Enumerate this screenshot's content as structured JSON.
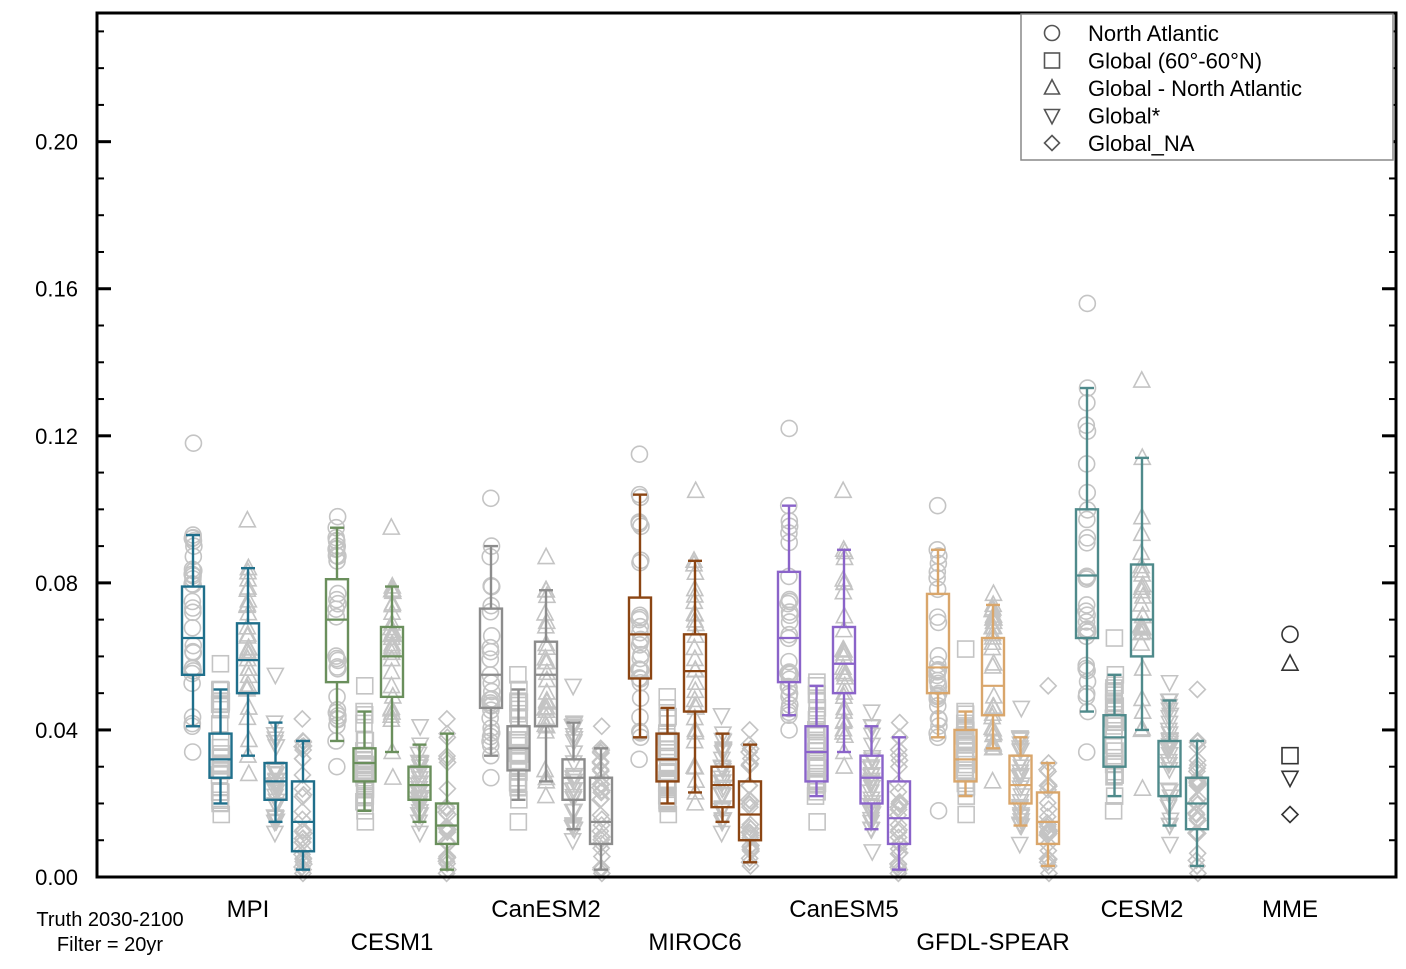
{
  "chart_data": {
    "type": "box",
    "title": "",
    "xlabel": "",
    "ylabel": "",
    "ylim": [
      0,
      0.235
    ],
    "yticks": [
      "0.00",
      "0.04",
      "0.08",
      "0.12",
      "0.16",
      "0.20"
    ],
    "legend": {
      "placement": "top-right",
      "entries": [
        {
          "marker": "circle",
          "label": "North Atlantic"
        },
        {
          "marker": "square",
          "label": "Global (60°-60°N)"
        },
        {
          "marker": "triangle-up",
          "label": "Global - North Atlantic"
        },
        {
          "marker": "triangle-down",
          "label": "Global*"
        },
        {
          "marker": "diamond",
          "label": "Global_NA"
        }
      ]
    },
    "annotation": {
      "line1": "Truth 2030-2100",
      "line2": "Filter = 20yr"
    },
    "models": [
      {
        "name": "MPI",
        "color": "#1f6f8b",
        "label_row": 1,
        "boxes": [
          {
            "metric": "North Atlantic",
            "q1": 0.055,
            "median": 0.065,
            "q3": 0.079,
            "whislo": 0.041,
            "whishi": 0.093,
            "fmin": 0.034,
            "fmax": 0.118
          },
          {
            "metric": "Global (60°-60°N)",
            "q1": 0.027,
            "median": 0.032,
            "q3": 0.039,
            "whislo": 0.02,
            "whishi": 0.051,
            "fmin": 0.017,
            "fmax": 0.058
          },
          {
            "metric": "Global - North Atlantic",
            "q1": 0.05,
            "median": 0.059,
            "q3": 0.069,
            "whislo": 0.033,
            "whishi": 0.084,
            "fmin": 0.028,
            "fmax": 0.097
          },
          {
            "metric": "Global*",
            "q1": 0.021,
            "median": 0.026,
            "q3": 0.031,
            "whislo": 0.015,
            "whishi": 0.042,
            "fmin": 0.012,
            "fmax": 0.055
          },
          {
            "metric": "Global_NA",
            "q1": 0.007,
            "median": 0.015,
            "q3": 0.026,
            "whislo": 0.002,
            "whishi": 0.037,
            "fmin": 0.001,
            "fmax": 0.043
          }
        ]
      },
      {
        "name": "CESM1",
        "color": "#6a8f5c",
        "label_row": 2,
        "boxes": [
          {
            "metric": "North Atlantic",
            "q1": 0.053,
            "median": 0.07,
            "q3": 0.081,
            "whislo": 0.037,
            "whishi": 0.095,
            "fmin": 0.03,
            "fmax": 0.098
          },
          {
            "metric": "Global (60°-60°N)",
            "q1": 0.026,
            "median": 0.031,
            "q3": 0.035,
            "whislo": 0.018,
            "whishi": 0.045,
            "fmin": 0.015,
            "fmax": 0.052
          },
          {
            "metric": "Global - North Atlantic",
            "q1": 0.049,
            "median": 0.06,
            "q3": 0.068,
            "whislo": 0.034,
            "whishi": 0.079,
            "fmin": 0.027,
            "fmax": 0.095
          },
          {
            "metric": "Global*",
            "q1": 0.021,
            "median": 0.025,
            "q3": 0.03,
            "whislo": 0.015,
            "whishi": 0.036,
            "fmin": 0.012,
            "fmax": 0.041
          },
          {
            "metric": "Global_NA",
            "q1": 0.009,
            "median": 0.014,
            "q3": 0.02,
            "whislo": 0.002,
            "whishi": 0.039,
            "fmin": 0.001,
            "fmax": 0.043
          }
        ]
      },
      {
        "name": "CanESM2",
        "color": "#8c8c8c",
        "label_row": 1,
        "boxes": [
          {
            "metric": "North Atlantic",
            "q1": 0.046,
            "median": 0.055,
            "q3": 0.073,
            "whislo": 0.033,
            "whishi": 0.09,
            "fmin": 0.027,
            "fmax": 0.103
          },
          {
            "metric": "Global (60°-60°N)",
            "q1": 0.029,
            "median": 0.035,
            "q3": 0.041,
            "whislo": 0.021,
            "whishi": 0.051,
            "fmin": 0.015,
            "fmax": 0.055
          },
          {
            "metric": "Global - North Atlantic",
            "q1": 0.041,
            "median": 0.055,
            "q3": 0.064,
            "whislo": 0.026,
            "whishi": 0.078,
            "fmin": 0.022,
            "fmax": 0.087
          },
          {
            "metric": "Global*",
            "q1": 0.021,
            "median": 0.027,
            "q3": 0.032,
            "whislo": 0.013,
            "whishi": 0.042,
            "fmin": 0.01,
            "fmax": 0.052
          },
          {
            "metric": "Global_NA",
            "q1": 0.009,
            "median": 0.015,
            "q3": 0.027,
            "whislo": 0.002,
            "whishi": 0.035,
            "fmin": 0.001,
            "fmax": 0.041
          }
        ]
      },
      {
        "name": "MIROC6",
        "color": "#8b4513",
        "label_row": 2,
        "boxes": [
          {
            "metric": "North Atlantic",
            "q1": 0.054,
            "median": 0.066,
            "q3": 0.076,
            "whislo": 0.038,
            "whishi": 0.104,
            "fmin": 0.032,
            "fmax": 0.115
          },
          {
            "metric": "Global (60°-60°N)",
            "q1": 0.026,
            "median": 0.032,
            "q3": 0.039,
            "whislo": 0.02,
            "whishi": 0.046,
            "fmin": 0.017,
            "fmax": 0.049
          },
          {
            "metric": "Global - North Atlantic",
            "q1": 0.045,
            "median": 0.056,
            "q3": 0.066,
            "whislo": 0.023,
            "whishi": 0.086,
            "fmin": 0.02,
            "fmax": 0.105
          },
          {
            "metric": "Global*",
            "q1": 0.019,
            "median": 0.025,
            "q3": 0.03,
            "whislo": 0.015,
            "whishi": 0.039,
            "fmin": 0.012,
            "fmax": 0.044
          },
          {
            "metric": "Global_NA",
            "q1": 0.01,
            "median": 0.017,
            "q3": 0.026,
            "whislo": 0.004,
            "whishi": 0.036,
            "fmin": 0.003,
            "fmax": 0.04
          }
        ]
      },
      {
        "name": "CanESM5",
        "color": "#8a63c9",
        "label_row": 1,
        "boxes": [
          {
            "metric": "North Atlantic",
            "q1": 0.053,
            "median": 0.065,
            "q3": 0.083,
            "whislo": 0.044,
            "whishi": 0.101,
            "fmin": 0.04,
            "fmax": 0.122
          },
          {
            "metric": "Global (60°-60°N)",
            "q1": 0.026,
            "median": 0.034,
            "q3": 0.041,
            "whislo": 0.022,
            "whishi": 0.052,
            "fmin": 0.015,
            "fmax": 0.053
          },
          {
            "metric": "Global - North Atlantic",
            "q1": 0.05,
            "median": 0.058,
            "q3": 0.068,
            "whislo": 0.034,
            "whishi": 0.089,
            "fmin": 0.03,
            "fmax": 0.105
          },
          {
            "metric": "Global*",
            "q1": 0.02,
            "median": 0.027,
            "q3": 0.033,
            "whislo": 0.013,
            "whishi": 0.041,
            "fmin": 0.007,
            "fmax": 0.045
          },
          {
            "metric": "Global_NA",
            "q1": 0.009,
            "median": 0.016,
            "q3": 0.026,
            "whislo": 0.002,
            "whishi": 0.038,
            "fmin": 0.001,
            "fmax": 0.042
          }
        ]
      },
      {
        "name": "GFDL-SPEAR",
        "color": "#d9a66b",
        "label_row": 2,
        "boxes": [
          {
            "metric": "North Atlantic",
            "q1": 0.05,
            "median": 0.057,
            "q3": 0.077,
            "whislo": 0.038,
            "whishi": 0.089,
            "fmin": 0.018,
            "fmax": 0.101
          },
          {
            "metric": "Global (60°-60°N)",
            "q1": 0.026,
            "median": 0.032,
            "q3": 0.04,
            "whislo": 0.022,
            "whishi": 0.045,
            "fmin": 0.017,
            "fmax": 0.062
          },
          {
            "metric": "Global - North Atlantic",
            "q1": 0.044,
            "median": 0.052,
            "q3": 0.065,
            "whislo": 0.035,
            "whishi": 0.074,
            "fmin": 0.026,
            "fmax": 0.077
          },
          {
            "metric": "Global*",
            "q1": 0.02,
            "median": 0.025,
            "q3": 0.033,
            "whislo": 0.014,
            "whishi": 0.038,
            "fmin": 0.009,
            "fmax": 0.046
          },
          {
            "metric": "Global_NA",
            "q1": 0.009,
            "median": 0.015,
            "q3": 0.023,
            "whislo": 0.003,
            "whishi": 0.031,
            "fmin": 0.001,
            "fmax": 0.052
          }
        ]
      },
      {
        "name": "CESM2",
        "color": "#4f8a8b",
        "label_row": 1,
        "boxes": [
          {
            "metric": "North Atlantic",
            "q1": 0.065,
            "median": 0.082,
            "q3": 0.1,
            "whislo": 0.045,
            "whishi": 0.133,
            "fmin": 0.034,
            "fmax": 0.156
          },
          {
            "metric": "Global (60°-60°N)",
            "q1": 0.03,
            "median": 0.038,
            "q3": 0.044,
            "whislo": 0.022,
            "whishi": 0.055,
            "fmin": 0.018,
            "fmax": 0.065
          },
          {
            "metric": "Global - North Atlantic",
            "q1": 0.06,
            "median": 0.07,
            "q3": 0.085,
            "whislo": 0.04,
            "whishi": 0.114,
            "fmin": 0.024,
            "fmax": 0.135
          },
          {
            "metric": "Global*",
            "q1": 0.022,
            "median": 0.03,
            "q3": 0.037,
            "whislo": 0.014,
            "whishi": 0.048,
            "fmin": 0.009,
            "fmax": 0.053
          },
          {
            "metric": "Global_NA",
            "q1": 0.013,
            "median": 0.02,
            "q3": 0.027,
            "whislo": 0.003,
            "whishi": 0.037,
            "fmin": 0.001,
            "fmax": 0.051
          }
        ]
      }
    ],
    "mme": {
      "name": "MME",
      "label_row": 1,
      "points": [
        {
          "metric": "North Atlantic",
          "marker": "circle",
          "value": 0.066
        },
        {
          "metric": "Global - North Atlantic",
          "marker": "triangle-up",
          "value": 0.058
        },
        {
          "metric": "Global (60°-60°N)",
          "marker": "square",
          "value": 0.033
        },
        {
          "metric": "Global*",
          "marker": "triangle-down",
          "value": 0.027
        },
        {
          "metric": "Global_NA",
          "marker": "diamond",
          "value": 0.017
        }
      ]
    },
    "colors": {
      "scatter": "#c4c4c4",
      "axis": "#000000",
      "legend_marker": "#555555",
      "legend_border": "#888888"
    }
  }
}
